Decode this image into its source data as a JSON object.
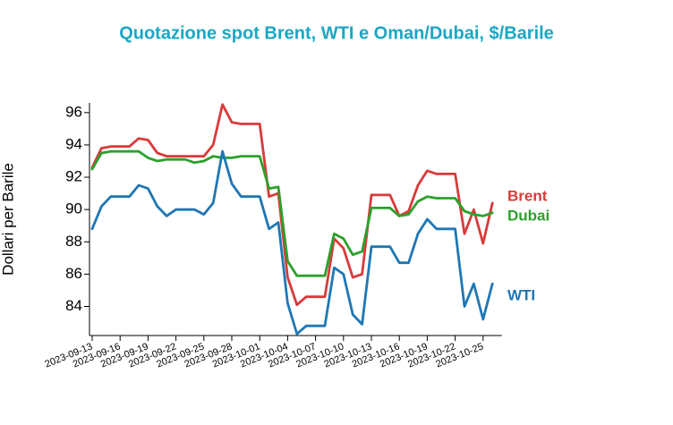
{
  "chart_data": {
    "type": "line",
    "title": "Quotazione spot Brent, WTI e Oman/Dubai, $/Barile",
    "y_label": "Dollari per Barile",
    "x": [
      "2023-09-13",
      "2023-09-14",
      "2023-09-15",
      "2023-09-16",
      "2023-09-17",
      "2023-09-18",
      "2023-09-19",
      "2023-09-20",
      "2023-09-21",
      "2023-09-22",
      "2023-09-23",
      "2023-09-24",
      "2023-09-25",
      "2023-09-26",
      "2023-09-27",
      "2023-09-28",
      "2023-09-29",
      "2023-09-30",
      "2023-10-01",
      "2023-10-02",
      "2023-10-03",
      "2023-10-04",
      "2023-10-05",
      "2023-10-06",
      "2023-10-07",
      "2023-10-08",
      "2023-10-09",
      "2023-10-10",
      "2023-10-11",
      "2023-10-12",
      "2023-10-13",
      "2023-10-14",
      "2023-10-15",
      "2023-10-16",
      "2023-10-17",
      "2023-10-18",
      "2023-10-19",
      "2023-10-20",
      "2023-10-21",
      "2023-10-22",
      "2023-10-23",
      "2023-10-24",
      "2023-10-25",
      "2023-10-26"
    ],
    "series": [
      {
        "name": "Brent",
        "color": "#d93a3a",
        "values": [
          92.6,
          93.8,
          93.9,
          93.9,
          93.9,
          94.4,
          94.3,
          93.5,
          93.3,
          93.3,
          93.3,
          93.3,
          93.3,
          94.0,
          96.5,
          95.4,
          95.3,
          95.3,
          95.3,
          90.8,
          91.0,
          85.8,
          84.1,
          84.6,
          84.6,
          84.6,
          88.2,
          87.6,
          85.8,
          86.0,
          90.9,
          90.9,
          90.9,
          89.6,
          89.9,
          91.5,
          92.4,
          92.2,
          92.2,
          92.2,
          88.5,
          90.0,
          87.9,
          90.4
        ]
      },
      {
        "name": "Dubai",
        "color": "#2ca02c",
        "values": [
          92.5,
          93.5,
          93.6,
          93.6,
          93.6,
          93.6,
          93.2,
          93.0,
          93.1,
          93.1,
          93.1,
          92.9,
          93.0,
          93.3,
          93.2,
          93.2,
          93.3,
          93.3,
          93.3,
          91.3,
          91.4,
          86.8,
          85.9,
          85.9,
          85.9,
          85.9,
          88.5,
          88.2,
          87.2,
          87.4,
          90.1,
          90.1,
          90.1,
          89.6,
          89.7,
          90.5,
          90.8,
          90.7,
          90.7,
          90.7,
          89.9,
          89.7,
          89.6,
          89.8
        ]
      },
      {
        "name": "WTI",
        "color": "#1f77b4",
        "values": [
          88.8,
          90.2,
          90.8,
          90.8,
          90.8,
          91.5,
          91.3,
          90.2,
          89.6,
          90.0,
          90.0,
          90.0,
          89.7,
          90.4,
          93.6,
          91.6,
          90.8,
          90.8,
          90.8,
          88.8,
          89.2,
          84.2,
          82.3,
          82.8,
          82.8,
          82.8,
          86.4,
          86.0,
          83.5,
          82.9,
          87.7,
          87.7,
          87.7,
          86.7,
          86.7,
          88.5,
          89.4,
          88.8,
          88.8,
          88.8,
          84.0,
          85.4,
          83.2,
          85.4
        ]
      }
    ],
    "xlim": [
      "2023-09-13",
      "2023-10-27"
    ],
    "xticks": [
      "2023-09-13",
      "2023-09-16",
      "2023-09-19",
      "2023-09-22",
      "2023-09-25",
      "2023-09-28",
      "2023-10-01",
      "2023-10-04",
      "2023-10-07",
      "2023-10-10",
      "2023-10-13",
      "2023-10-16",
      "2023-10-19",
      "2023-10-22",
      "2023-10-25"
    ],
    "ylim": [
      82.2,
      96.6
    ],
    "yticks": [
      84,
      86,
      88,
      90,
      92,
      94,
      96
    ]
  }
}
